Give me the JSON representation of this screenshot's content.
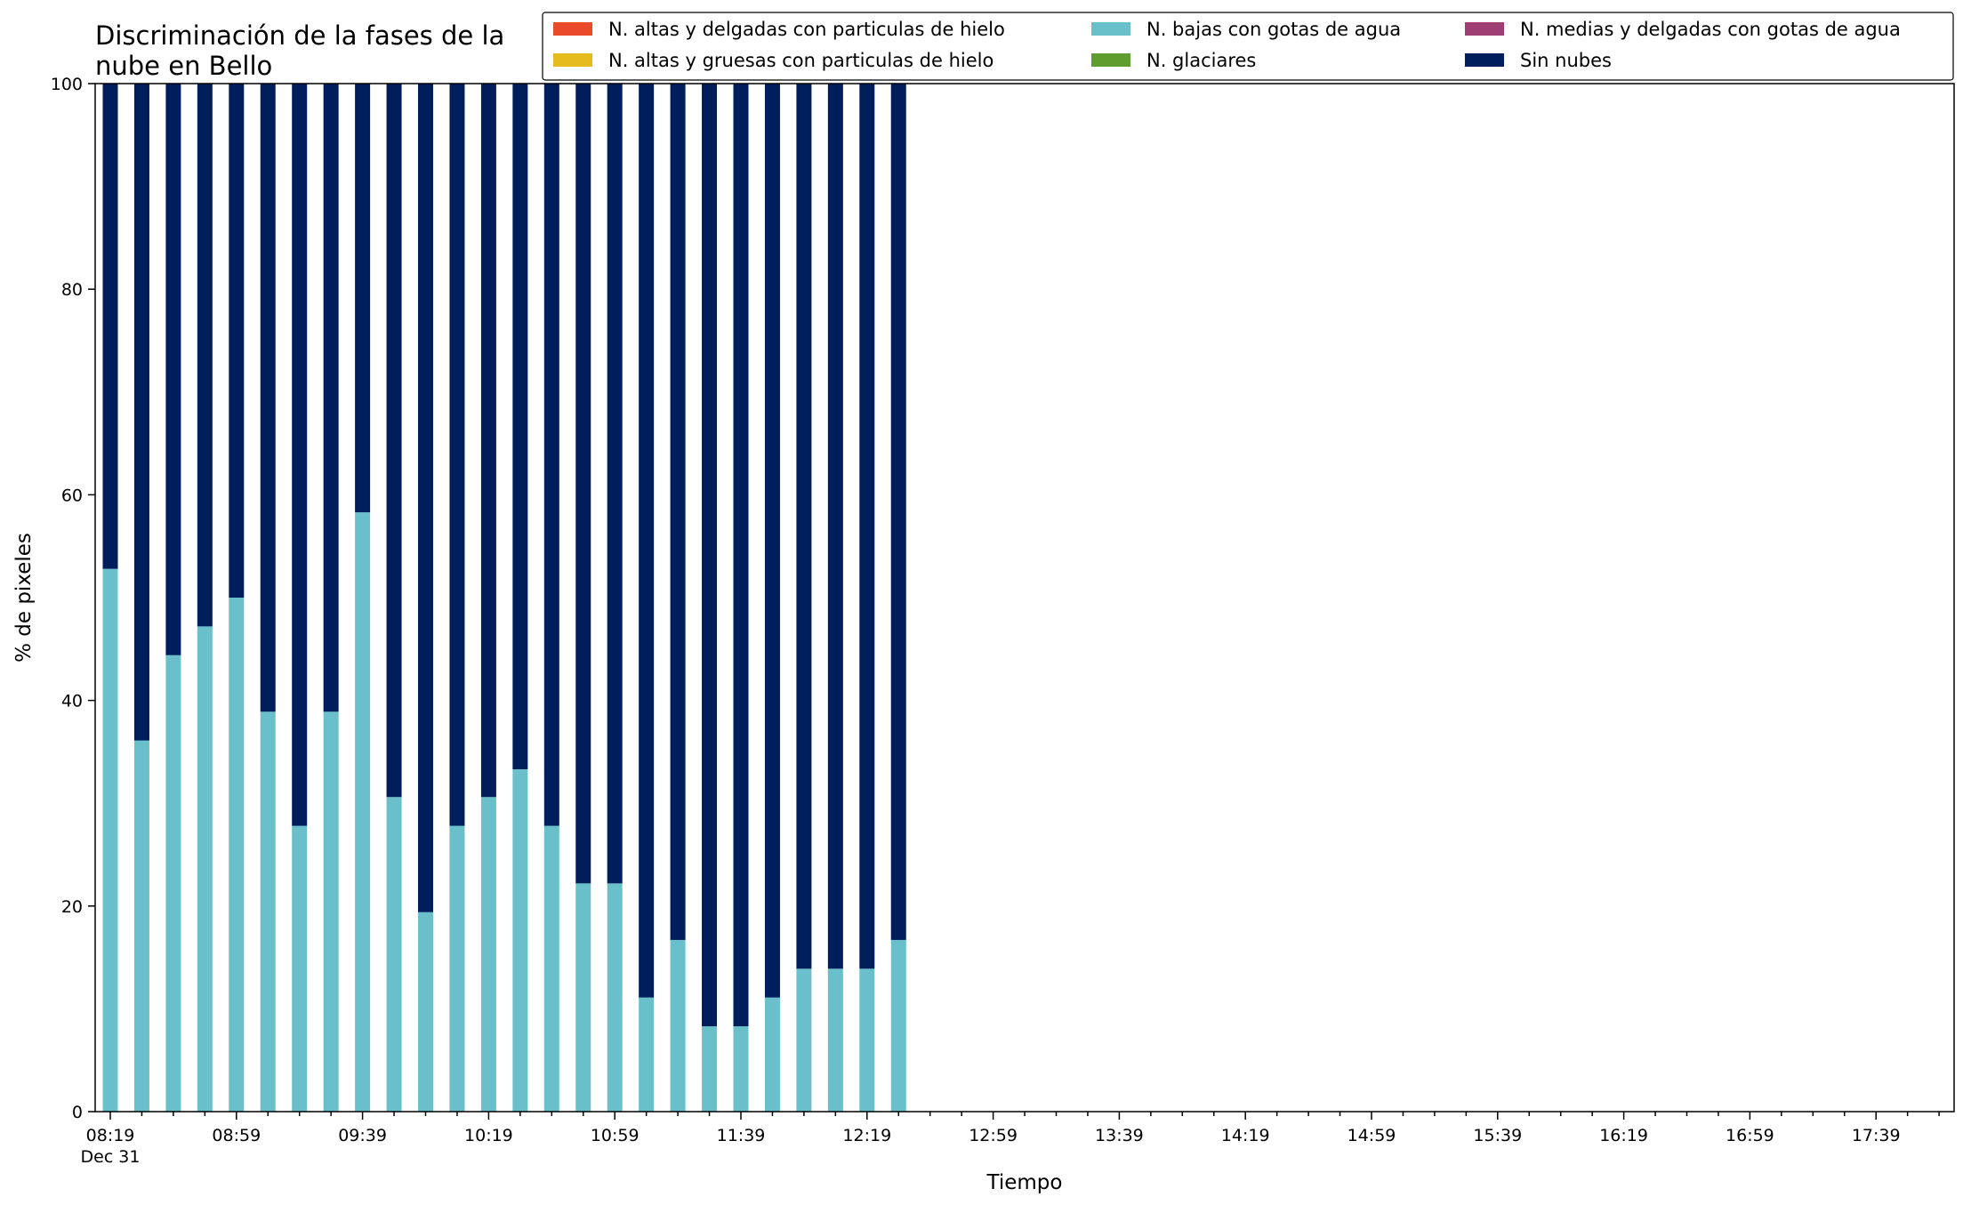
{
  "chart_data": {
    "type": "bar",
    "stacked": true,
    "title_lines": [
      "Discriminación de la fases de la",
      "nube en Bello"
    ],
    "xlabel": "Tiempo",
    "ylabel": "% de pixeles",
    "ylim": [
      0,
      100
    ],
    "yticks": [
      0,
      20,
      40,
      60,
      80,
      100
    ],
    "xtick_labels": [
      "08:19",
      "08:59",
      "09:39",
      "10:19",
      "10:59",
      "11:39",
      "12:19",
      "12:59",
      "13:39",
      "14:19",
      "14:59",
      "15:39",
      "16:19",
      "16:59",
      "17:39"
    ],
    "xtick_date": "Dec 31",
    "x_start": "08:19",
    "x_end": "17:59",
    "x_step_minutes": 10,
    "legend_position": "top-right",
    "grid": false,
    "times": [
      "08:19",
      "08:29",
      "08:39",
      "08:49",
      "08:59",
      "09:09",
      "09:19",
      "09:29",
      "09:39",
      "09:49",
      "09:59",
      "10:09",
      "10:19",
      "10:29",
      "10:39",
      "10:49",
      "10:59",
      "11:09",
      "11:19",
      "11:29",
      "11:39",
      "11:49",
      "11:59",
      "12:09",
      "12:19",
      "12:29"
    ],
    "series": [
      {
        "name": "N. altas y delgadas con particulas de hielo",
        "color": "#e84a2a",
        "values": [
          0,
          0,
          0,
          0,
          0,
          0,
          0,
          0,
          0,
          0,
          0,
          0,
          0,
          0,
          0,
          0,
          0,
          0,
          0,
          0,
          0,
          0,
          0,
          0,
          0,
          0
        ]
      },
      {
        "name": "N. altas y gruesas con particulas de hielo",
        "color": "#e6bb1e",
        "values": [
          0,
          0,
          0,
          0,
          0,
          0,
          0,
          0,
          0,
          0,
          0,
          0,
          0,
          0,
          0,
          0,
          0,
          0,
          0,
          0,
          0,
          0,
          0,
          0,
          0,
          0
        ]
      },
      {
        "name": "N. bajas con gotas de agua",
        "color": "#69c0cb",
        "values": [
          52.8,
          36.1,
          44.4,
          47.2,
          50.0,
          38.9,
          27.8,
          38.9,
          58.3,
          30.6,
          19.4,
          27.8,
          30.6,
          33.3,
          27.8,
          22.2,
          22.2,
          11.1,
          16.7,
          8.3,
          8.3,
          11.1,
          13.9,
          13.9,
          13.9,
          16.7
        ]
      },
      {
        "name": "N. glaciares",
        "color": "#5e9e2e",
        "values": [
          0,
          0,
          0,
          0,
          0,
          0,
          0,
          0,
          0,
          0,
          0,
          0,
          0,
          0,
          0,
          0,
          0,
          0,
          0,
          0,
          0,
          0,
          0,
          0,
          0,
          0
        ]
      },
      {
        "name": "N. medias y delgadas con gotas de agua",
        "color": "#9e3e72",
        "values": [
          0,
          0,
          0,
          0,
          0,
          0,
          0,
          0,
          0,
          0,
          0,
          0,
          0,
          0,
          0,
          0,
          0,
          0,
          0,
          0,
          0,
          0,
          0,
          0,
          0,
          0
        ]
      },
      {
        "name": "Sin nubes",
        "color": "#001e5c",
        "values": [
          47.2,
          63.9,
          55.6,
          52.8,
          50.0,
          61.1,
          72.2,
          61.1,
          41.7,
          69.4,
          80.6,
          72.2,
          69.4,
          66.7,
          72.2,
          77.8,
          77.8,
          88.9,
          83.3,
          91.7,
          91.7,
          88.9,
          86.1,
          86.1,
          86.1,
          83.3
        ]
      }
    ]
  }
}
